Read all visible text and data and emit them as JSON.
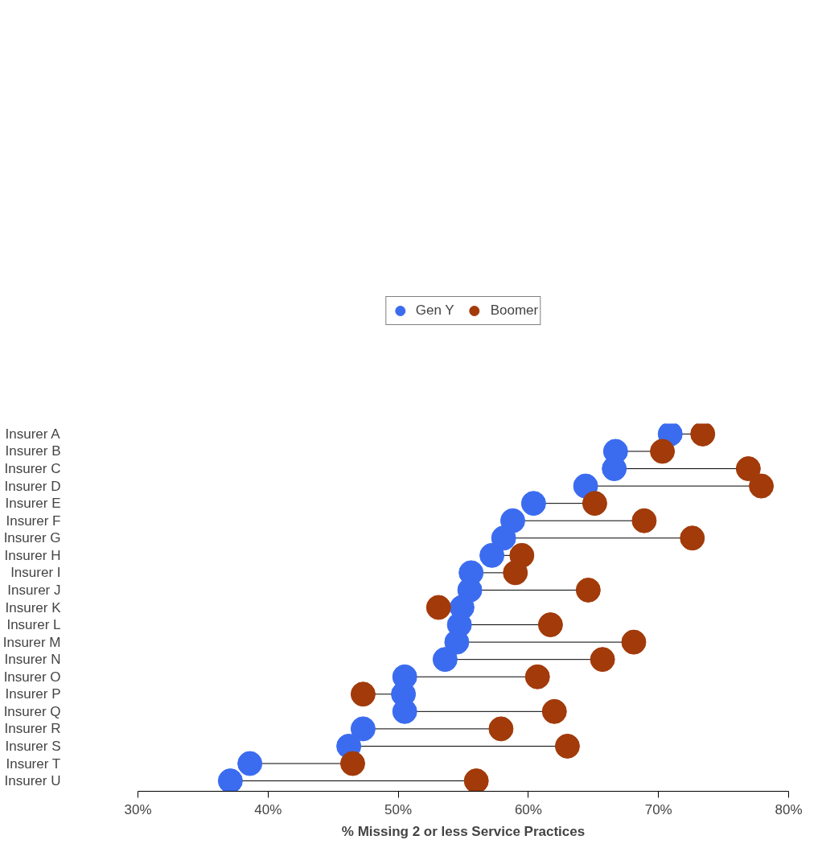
{
  "chart_data": {
    "type": "scatter",
    "orientation": "horizontal",
    "xlabel": "% Missing 2 or less Service Practices",
    "categories": [
      "Insurer A",
      "Insurer B",
      "Insurer C",
      "Insurer D",
      "Insurer E",
      "Insurer F",
      "Insurer G",
      "Insurer H",
      "Insurer I",
      "Insurer J",
      "Insurer K",
      "Insurer L",
      "Insurer M",
      "Insurer N",
      "Insurer O",
      "Insurer P",
      "Insurer Q",
      "Insurer R",
      "Insurer S",
      "Insurer T",
      "Insurer U"
    ],
    "series": [
      {
        "name": "Gen Y",
        "color": "#3b6cf0",
        "values": [
          70.9,
          66.7,
          66.6,
          64.4,
          60.4,
          58.8,
          58.1,
          57.2,
          55.6,
          55.5,
          54.9,
          54.7,
          54.5,
          53.6,
          50.5,
          50.4,
          50.5,
          47.3,
          46.2,
          38.6,
          37.1
        ]
      },
      {
        "name": "Boomer",
        "color": "#a23a0a",
        "values": [
          73.4,
          70.3,
          76.9,
          77.9,
          65.1,
          68.9,
          72.6,
          59.5,
          59.0,
          64.6,
          53.1,
          61.7,
          68.1,
          65.7,
          60.7,
          47.3,
          62.0,
          57.9,
          63.0,
          46.5,
          56.0
        ]
      }
    ],
    "xlim": [
      30,
      80
    ],
    "xticks": [
      {
        "value": 30,
        "label": "30%"
      },
      {
        "value": 40,
        "label": "40%"
      },
      {
        "value": 50,
        "label": "50%"
      },
      {
        "value": 60,
        "label": "60%"
      },
      {
        "value": 70,
        "label": "70%"
      },
      {
        "value": 80,
        "label": "80%"
      }
    ],
    "marker": "circle",
    "grid": false,
    "legend": "top"
  }
}
